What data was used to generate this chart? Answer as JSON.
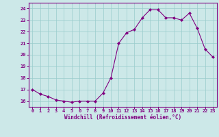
{
  "x": [
    0,
    1,
    2,
    3,
    4,
    5,
    6,
    7,
    8,
    9,
    10,
    11,
    12,
    13,
    14,
    15,
    16,
    17,
    18,
    19,
    20,
    21,
    22,
    23
  ],
  "y": [
    17.0,
    16.6,
    16.4,
    16.1,
    16.0,
    15.9,
    16.0,
    16.0,
    16.0,
    16.7,
    18.0,
    21.0,
    21.9,
    22.2,
    23.2,
    23.9,
    23.9,
    23.2,
    23.2,
    23.0,
    23.6,
    22.3,
    20.5,
    19.8
  ],
  "xlim": [
    -0.5,
    23.5
  ],
  "ylim": [
    15.5,
    24.5
  ],
  "yticks": [
    16,
    17,
    18,
    19,
    20,
    21,
    22,
    23,
    24
  ],
  "xticks": [
    0,
    1,
    2,
    3,
    4,
    5,
    6,
    7,
    8,
    9,
    10,
    11,
    12,
    13,
    14,
    15,
    16,
    17,
    18,
    19,
    20,
    21,
    22,
    23
  ],
  "xlabel": "Windchill (Refroidissement éolien,°C)",
  "line_color": "#800080",
  "marker": "D",
  "marker_size": 2,
  "bg_color": "#cce8e8",
  "grid_color": "#99cccc",
  "tick_color": "#800080",
  "label_color": "#800080",
  "axis_color": "#800080",
  "tick_fontsize": 5.0,
  "xlabel_fontsize": 5.5
}
